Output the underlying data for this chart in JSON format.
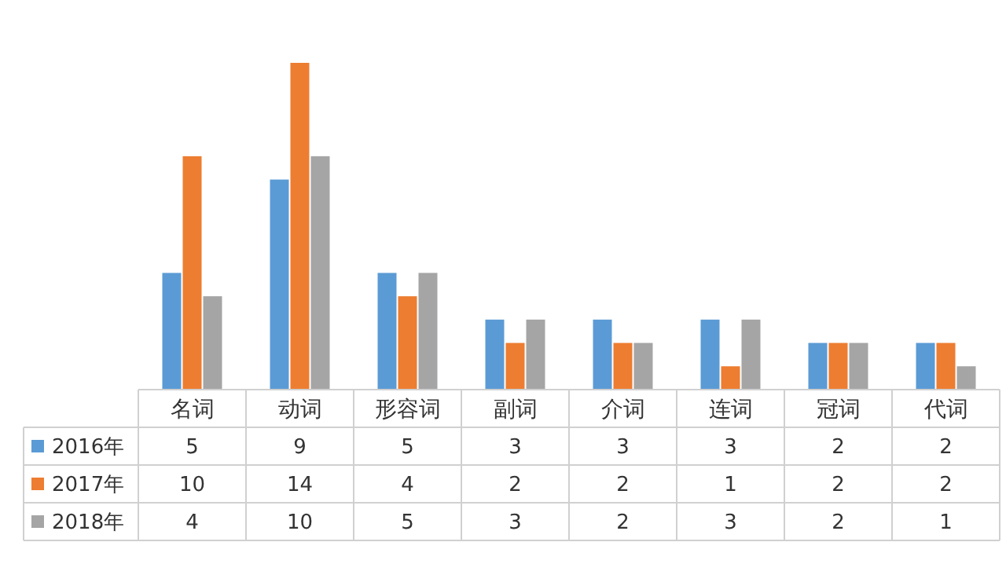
{
  "chart_data": {
    "type": "bar",
    "categories": [
      "名词",
      "动词",
      "形容词",
      "副词",
      "介词",
      "连词",
      "冠词",
      "代词"
    ],
    "series": [
      {
        "name": "2016年",
        "color": "#5b9bd5",
        "values": [
          5,
          9,
          5,
          3,
          3,
          3,
          2,
          2
        ]
      },
      {
        "name": "2017年",
        "color": "#ed7d31",
        "values": [
          10,
          14,
          4,
          2,
          2,
          1,
          2,
          2
        ]
      },
      {
        "name": "2018年",
        "color": "#a5a5a5",
        "values": [
          4,
          10,
          5,
          3,
          2,
          3,
          2,
          1
        ]
      }
    ],
    "data_labels": true,
    "legend": "bottom left"
  }
}
